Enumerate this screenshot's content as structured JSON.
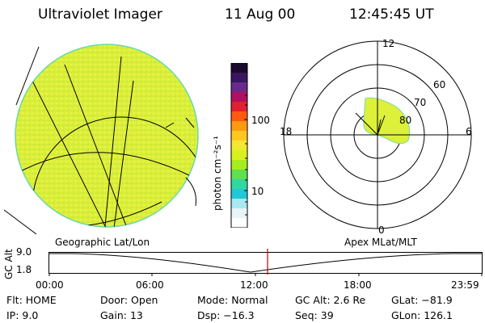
{
  "header": {
    "instrument": "Ultraviolet Imager",
    "date": "11 Aug 00",
    "time": "12:45:45 UT"
  },
  "colorbar": {
    "label": "photon cm⁻²s⁻¹",
    "ticks": [
      "100",
      "10"
    ],
    "colors": [
      "#1a0a2e",
      "#3a1660",
      "#6a2a8c",
      "#b01060",
      "#e02030",
      "#ff5a10",
      "#ff9a10",
      "#ffc820",
      "#f2e830",
      "#d8f020",
      "#a8ec20",
      "#5ee050",
      "#30d8a0",
      "#20c8d8",
      "#a8e8f0",
      "#e8f4f8",
      "#ffffff"
    ]
  },
  "left_panel": {
    "label": "Geographic Lat/Lon",
    "disk_color": "#ddf03a"
  },
  "right_panel": {
    "label": "Apex MLat/MLT",
    "mlt_labels": {
      "top": "12",
      "left": "18",
      "right": "6",
      "bottom": "0"
    },
    "lat_labels": [
      "60",
      "70",
      "80"
    ],
    "oval_color": "#ddf03a"
  },
  "timeline": {
    "axis_label": "GC Alt",
    "y_ticks": [
      "9.0",
      "1.8"
    ],
    "x_ticks": [
      "00:00",
      "06:00",
      "12:00",
      "18:00",
      "23:59"
    ],
    "current_marker_color": "#c00000"
  },
  "footer": {
    "flt_label": "Flt:",
    "flt_value": "HOME",
    "ip_label": "IP:",
    "ip_value": "9.0",
    "door_label": "Door:",
    "door_value": "Open",
    "gain_label": "Gain:",
    "gain_value": "13",
    "mode_label": "Mode:",
    "mode_value": "Normal",
    "dsp_label": "Dsp:",
    "dsp_value": "−16.3",
    "gcalt_label": "GC Alt:",
    "gcalt_value": "2.6 Re",
    "seq_label": "Seq:",
    "seq_value": "39",
    "glat_label": "GLat:",
    "glat_value": "−81.9",
    "glon_label": "GLon:",
    "glon_value": "126.1"
  }
}
